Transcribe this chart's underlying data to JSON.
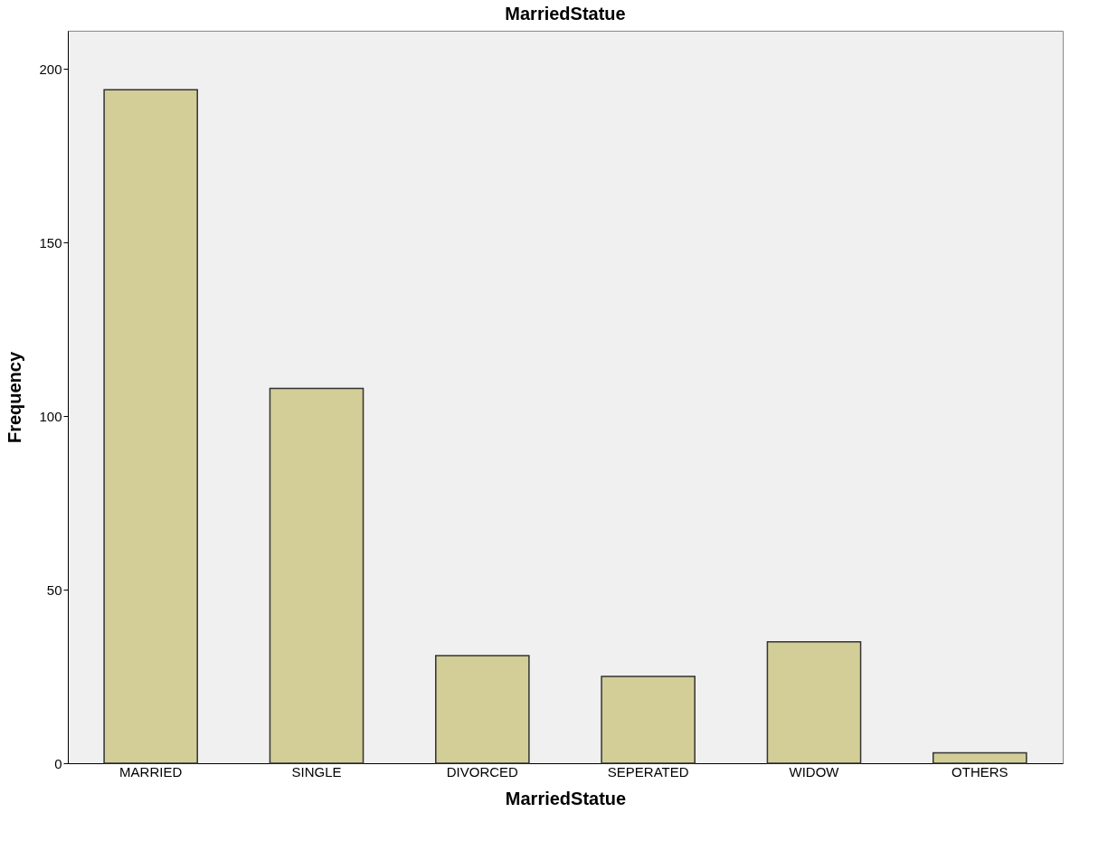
{
  "chart_data": {
    "type": "bar",
    "title": "MarriedStatue",
    "xlabel": "MarriedStatue",
    "ylabel": "Frequency",
    "categories": [
      "MARRIED",
      "SINGLE",
      "DIVORCED",
      "SEPERATED",
      "WIDOW",
      "OTHERS"
    ],
    "values": [
      194,
      108,
      31,
      25,
      35,
      3
    ],
    "color": "#d3ce97",
    "ylim": [
      0,
      211
    ],
    "yticks": [
      0,
      50,
      100,
      150,
      200
    ],
    "grid": false
  }
}
